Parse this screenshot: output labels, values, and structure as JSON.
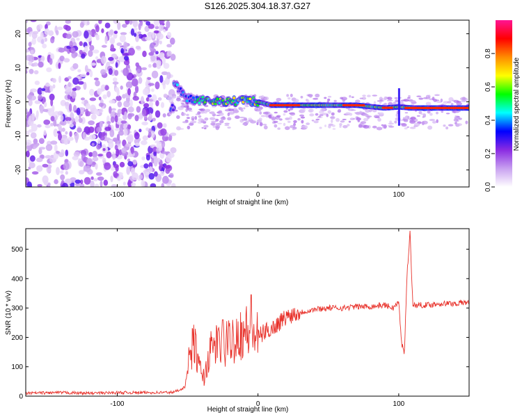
{
  "title": "S126.2025.304.18.37.G27",
  "chart_data": [
    {
      "type": "heatmap",
      "xlabel": "Height of straight line (km)",
      "ylabel": "Frequency (Hz)",
      "xlim": [
        -165,
        150
      ],
      "ylim": [
        -25,
        24
      ],
      "x_ticks": [
        -100,
        0,
        100
      ],
      "y_ticks": [
        -20,
        -10,
        0,
        10,
        20
      ],
      "colorbar": {
        "label": "Normalized spectral amplitude",
        "range": [
          0,
          1
        ],
        "ticks": [
          0.0,
          0.2,
          0.4,
          0.6,
          0.8
        ],
        "colors": [
          "#ffffff",
          "#c8a0f0",
          "#8a2be2",
          "#0000ff",
          "#00ffff",
          "#00ff00",
          "#ffff00",
          "#ff8c00",
          "#ff0000",
          "#ff1493"
        ]
      },
      "regions": [
        {
          "name": "noise",
          "x_range": [
            -165,
            -60
          ],
          "description_free": true,
          "mean_amplitude": 0.12
        },
        {
          "name": "signal-trace",
          "points": [
            [
              -60,
              6
            ],
            [
              -55,
              3
            ],
            [
              -50,
              1
            ],
            [
              -40,
              0.5
            ],
            [
              -30,
              0.3
            ],
            [
              -20,
              0
            ],
            [
              -10,
              0.5
            ],
            [
              0,
              0
            ],
            [
              10,
              -1
            ],
            [
              30,
              -1
            ],
            [
              50,
              -1
            ],
            [
              70,
              -1
            ],
            [
              90,
              -1.8
            ],
            [
              100,
              -1.5
            ],
            [
              110,
              -1.8
            ],
            [
              130,
              -1.8
            ],
            [
              150,
              -1.8
            ]
          ]
        }
      ]
    },
    {
      "type": "line",
      "xlabel": "Height of straight line (km)",
      "ylabel": "SNR (10 * v/v)",
      "xlim": [
        -165,
        150
      ],
      "ylim": [
        0,
        570
      ],
      "x_ticks": [
        -100,
        0,
        100
      ],
      "y_ticks": [
        0,
        100,
        200,
        300,
        400,
        500
      ],
      "color": "#e8322b",
      "series": [
        {
          "name": "SNR",
          "x": [
            -165,
            -140,
            -120,
            -100,
            -80,
            -60,
            -52,
            -48,
            -45,
            -42,
            -38,
            -35,
            -30,
            -25,
            -20,
            -15,
            -10,
            -5,
            0,
            5,
            10,
            15,
            20,
            25,
            30,
            40,
            50,
            60,
            70,
            80,
            90,
            96,
            100,
            102,
            104,
            106,
            108,
            110,
            120,
            130,
            140,
            150
          ],
          "y": [
            10,
            12,
            10,
            12,
            12,
            13,
            30,
            150,
            180,
            100,
            60,
            140,
            180,
            160,
            190,
            210,
            220,
            220,
            200,
            220,
            230,
            250,
            270,
            280,
            285,
            295,
            300,
            300,
            305,
            305,
            310,
            300,
            320,
            180,
            150,
            420,
            560,
            310,
            310,
            315,
            315,
            320
          ]
        }
      ]
    }
  ]
}
